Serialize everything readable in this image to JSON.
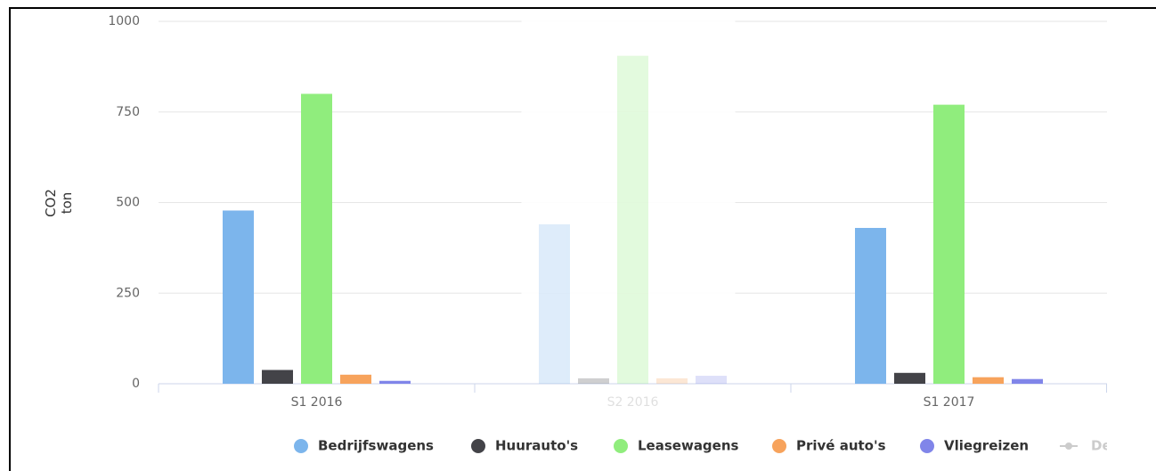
{
  "chart_data": {
    "type": "bar",
    "ylabel": [
      "CO2",
      "ton"
    ],
    "categories": [
      "S1 2016",
      "S2 2016",
      "S1 2017"
    ],
    "series": [
      {
        "name": "Bedrijfswagens",
        "color": "#7cb5ec",
        "values": [
          478,
          440,
          430
        ]
      },
      {
        "name": "Huurauto's",
        "color": "#434348",
        "values": [
          38,
          15,
          30
        ]
      },
      {
        "name": "Leasewagens",
        "color": "#90ed7d",
        "values": [
          800,
          905,
          770
        ]
      },
      {
        "name": "Privé auto's",
        "color": "#f7a35c",
        "values": [
          25,
          15,
          18
        ]
      },
      {
        "name": "Vliegreizen",
        "color": "#8085e9",
        "values": [
          8,
          22,
          13
        ]
      },
      {
        "name": "De",
        "color": "#cccccc",
        "values": [
          null,
          null,
          null
        ],
        "hidden": true
      }
    ],
    "dimmed_category": 1,
    "ylim": [
      0,
      1000
    ],
    "yticks": [
      0,
      250,
      500,
      750,
      1000
    ],
    "grid": true
  }
}
